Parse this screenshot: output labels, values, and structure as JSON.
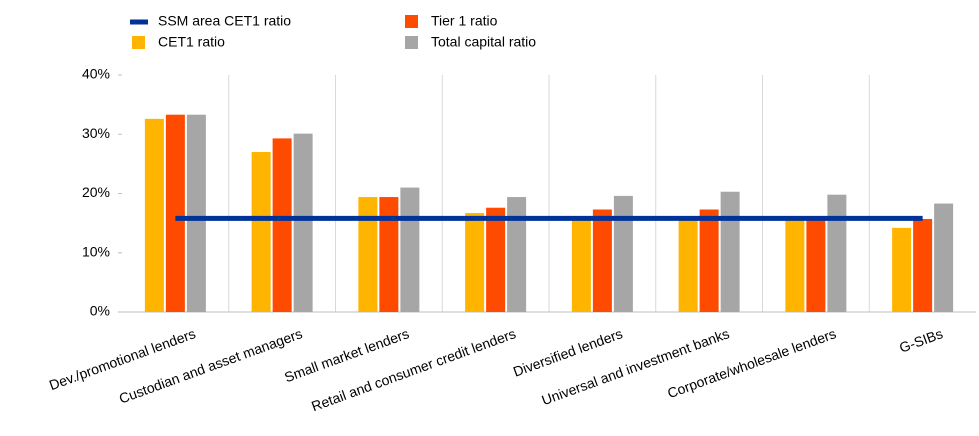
{
  "chart_data": {
    "type": "bar",
    "categories": [
      "Dev./promotional lenders",
      "Custodian and asset managers",
      "Small market lenders",
      "Retail and consumer credit lenders",
      "Diversified lenders",
      "Universal and investment banks",
      "Corporate/wholesale lenders",
      "G-SIBs"
    ],
    "series": [
      {
        "name": "SSM area CET1 ratio",
        "type": "line",
        "color": "#003299",
        "values": [
          15.8,
          15.8,
          15.8,
          15.8,
          15.8,
          15.8,
          15.8,
          15.8
        ]
      },
      {
        "name": "CET1 ratio",
        "color": "#ffb400",
        "values": [
          32.6,
          27.0,
          19.4,
          16.7,
          15.6,
          15.6,
          15.6,
          14.2
        ]
      },
      {
        "name": "Tier 1 ratio",
        "color": "#ff4b00",
        "values": [
          33.3,
          29.3,
          19.4,
          17.6,
          17.3,
          17.3,
          15.8,
          15.7
        ]
      },
      {
        "name": "Total capital ratio",
        "color": "#a6a6a6",
        "values": [
          33.3,
          30.1,
          21.0,
          19.4,
          19.6,
          20.3,
          19.8,
          18.3
        ]
      }
    ],
    "ylim": [
      0,
      40
    ],
    "yticks": [
      {
        "value": 0,
        "label": "0%"
      },
      {
        "value": 10,
        "label": "10%"
      },
      {
        "value": 20,
        "label": "20%"
      },
      {
        "value": 30,
        "label": "30%"
      },
      {
        "value": 40,
        "label": "40%"
      }
    ]
  }
}
